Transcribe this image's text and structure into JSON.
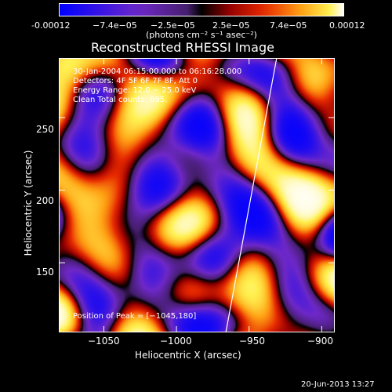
{
  "colorbar": {
    "ticks": [
      "-0.00012",
      "−7.4e−05",
      "−2.5e−05",
      "2.5e−05",
      "7.4e−05",
      "0.00012"
    ],
    "units": "(photons cm⁻² s⁻¹ asec⁻²)",
    "range": [
      -0.00012,
      0.00012
    ]
  },
  "chart_data": {
    "type": "heatmap",
    "title": "Reconstructed RHESSI Image",
    "xlabel": "Heliocentric X (arcsec)",
    "ylabel": "Heliocentric Y (arcsec)",
    "xlim": [
      -1081,
      -891
    ],
    "ylim": [
      102,
      291
    ],
    "x_ticks": [
      -1050,
      -1000,
      -950,
      -900
    ],
    "y_ticks": [
      150,
      200,
      250
    ],
    "x_tick_labels": [
      "−1050",
      "−1000",
      "−950",
      "−900"
    ],
    "y_tick_labels": [
      "150",
      "200",
      "250"
    ],
    "info_lines": [
      "30-Jan-2004 06:15:00.000 to 06:16:28.000",
      "Detectors: 4F 5F 6F 7F 8F, Att 0",
      "Energy Range: 12.0 − 25.0 keV",
      "Clean    Total counts: 695."
    ],
    "peak_label": "Position of Peak = [−1045,180]",
    "peak_position": [
      -1045,
      180
    ],
    "limb_line": [
      [
        -966,
        102
      ],
      [
        -931,
        291
      ]
    ]
  },
  "footer": {
    "date": "20-Jun-2013 13:27"
  }
}
